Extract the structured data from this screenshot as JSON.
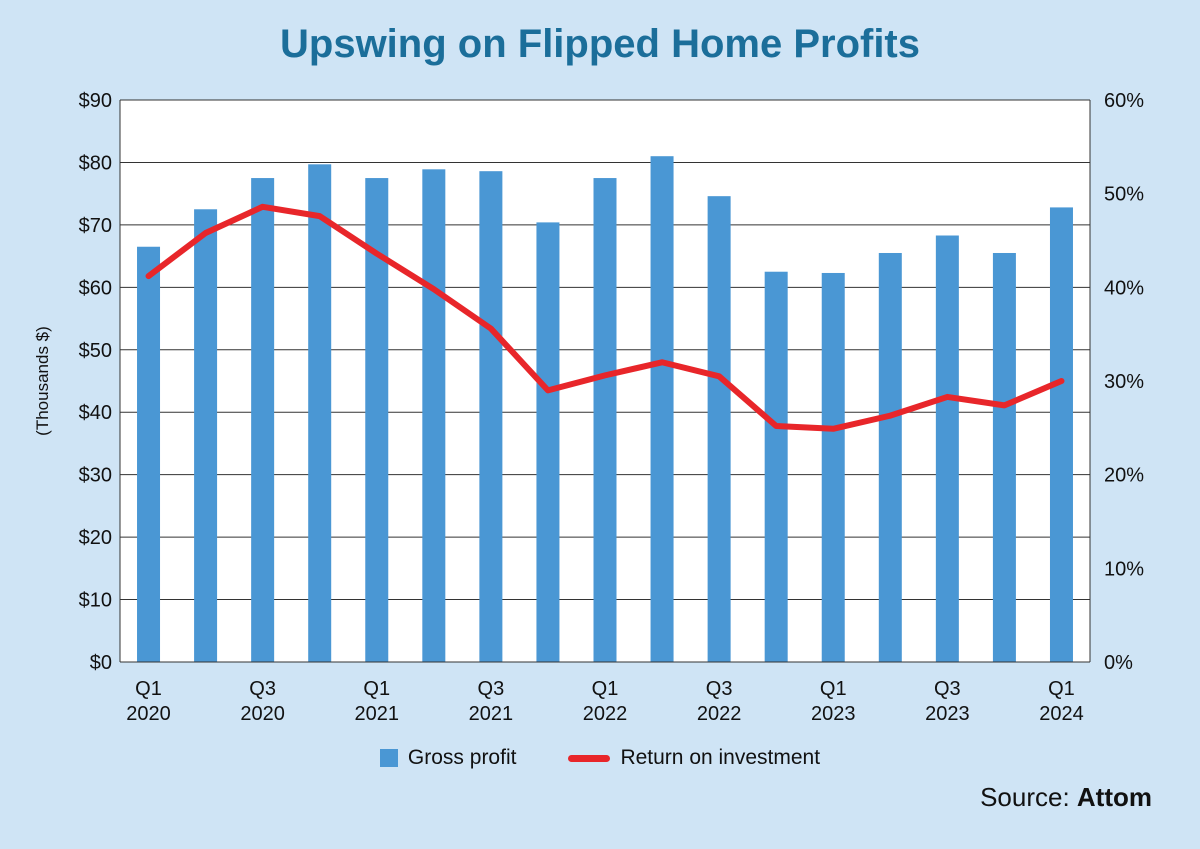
{
  "chart_data": {
    "type": "bar",
    "title": "Upswing on Flipped Home Profits",
    "ylabel": "(Thousands $)",
    "ylim": [
      0,
      90
    ],
    "y2lim": [
      0,
      60
    ],
    "yticks": [
      "$0",
      "$10",
      "$20",
      "$30",
      "$40",
      "$50",
      "$60",
      "$70",
      "$80",
      "$90"
    ],
    "y2ticks": [
      "0%",
      "10%",
      "20%",
      "30%",
      "40%",
      "50%",
      "60%"
    ],
    "x_tick_labels": [
      {
        "index": 0,
        "quarter": "Q1",
        "year": "2020"
      },
      {
        "index": 2,
        "quarter": "Q3",
        "year": "2020"
      },
      {
        "index": 4,
        "quarter": "Q1",
        "year": "2021"
      },
      {
        "index": 6,
        "quarter": "Q3",
        "year": "2021"
      },
      {
        "index": 8,
        "quarter": "Q1",
        "year": "2022"
      },
      {
        "index": 10,
        "quarter": "Q3",
        "year": "2022"
      },
      {
        "index": 12,
        "quarter": "Q1",
        "year": "2023"
      },
      {
        "index": 14,
        "quarter": "Q3",
        "year": "2023"
      },
      {
        "index": 16,
        "quarter": "Q1",
        "year": "2024"
      }
    ],
    "categories": [
      "Q1 2020",
      "Q2 2020",
      "Q3 2020",
      "Q4 2020",
      "Q1 2021",
      "Q2 2021",
      "Q3 2021",
      "Q4 2021",
      "Q1 2022",
      "Q2 2022",
      "Q3 2022",
      "Q4 2022",
      "Q1 2023",
      "Q2 2023",
      "Q3 2023",
      "Q4 2023",
      "Q1 2024"
    ],
    "series": [
      {
        "name": "Gross profit",
        "type": "bar",
        "axis": "left",
        "color": "#4a97d4",
        "values": [
          66.5,
          72.5,
          77.5,
          79.7,
          77.5,
          78.9,
          78.6,
          70.4,
          77.5,
          81.0,
          74.6,
          62.5,
          62.3,
          65.5,
          68.3,
          65.5,
          72.8
        ]
      },
      {
        "name": "Return on investment",
        "type": "line",
        "axis": "right",
        "color": "#e8262a",
        "values": [
          41.2,
          45.8,
          48.6,
          47.6,
          43.6,
          39.8,
          35.6,
          29.0,
          30.6,
          32.0,
          30.5,
          25.2,
          24.9,
          26.3,
          28.3,
          27.4,
          30.0
        ]
      }
    ],
    "grid": true,
    "legend": "bottom"
  },
  "source": {
    "prefix": "Source:",
    "name": "Attom"
  }
}
